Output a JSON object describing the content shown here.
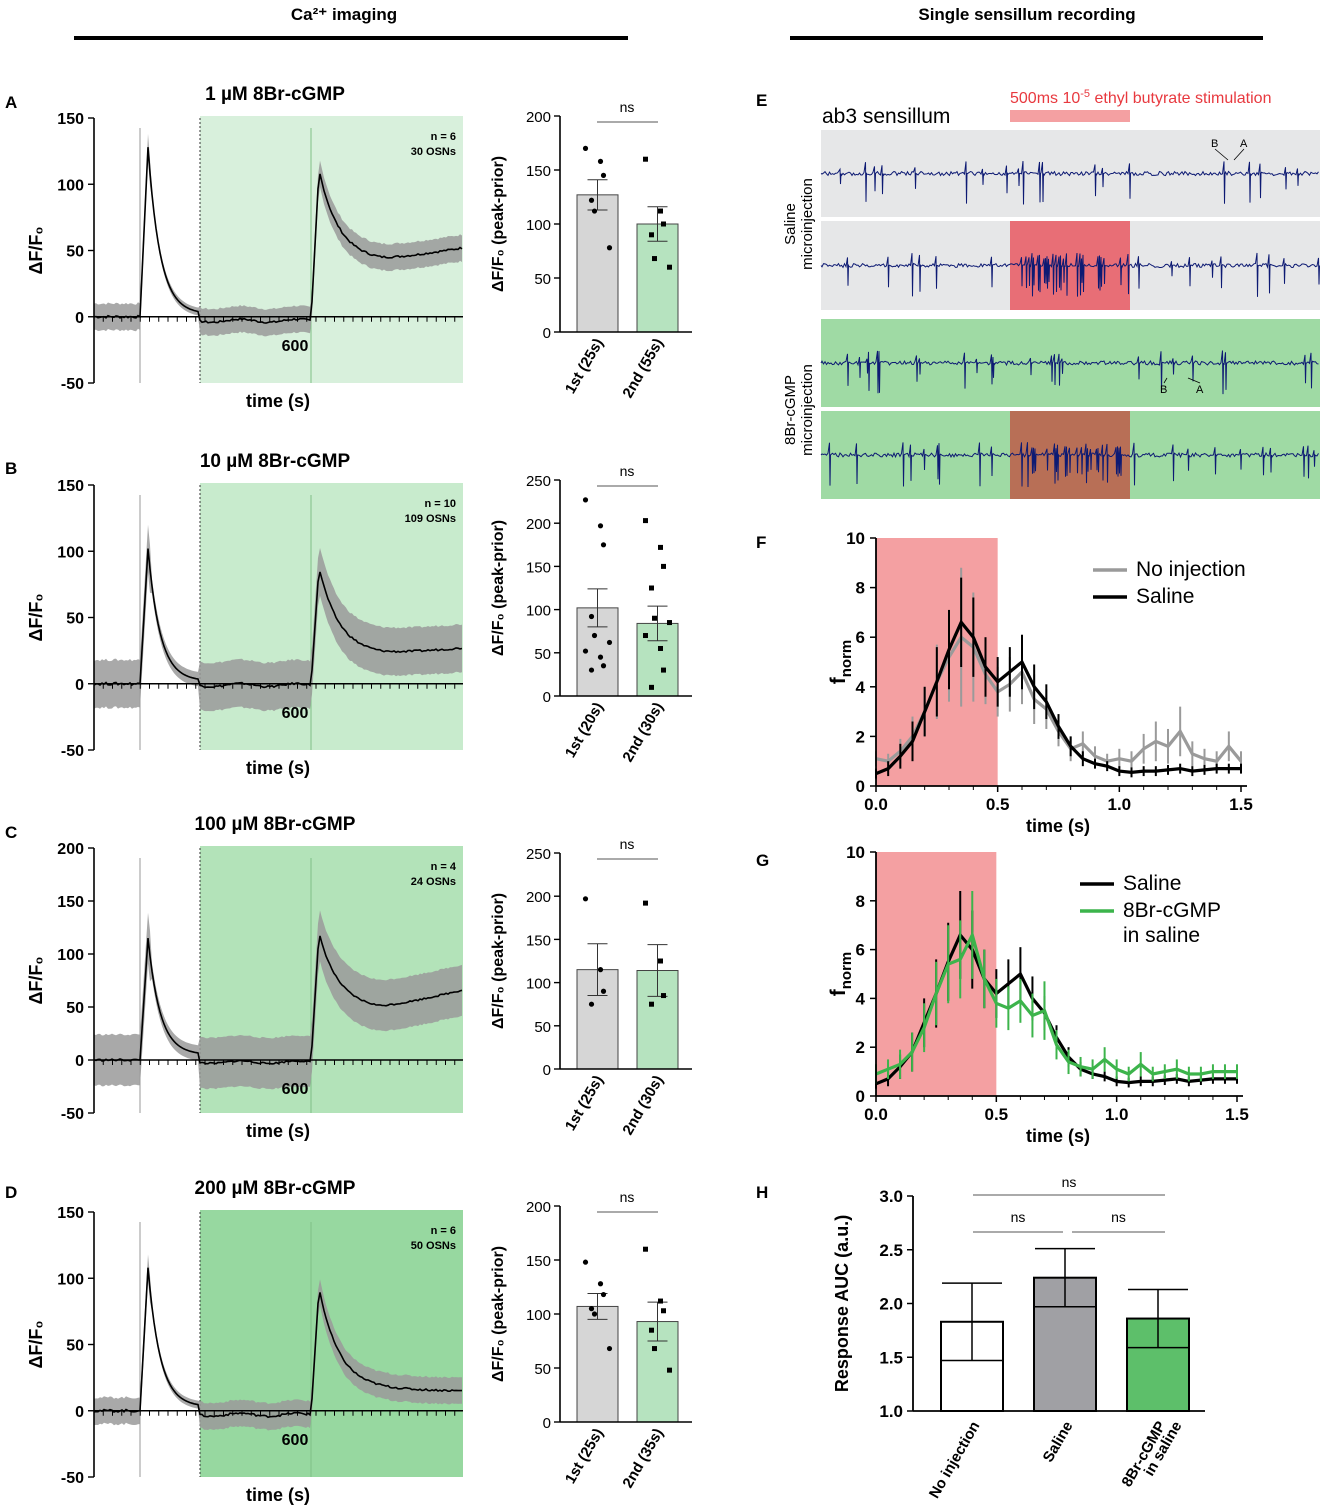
{
  "headers": {
    "left": "Ca²⁺ imaging",
    "right": "Single sensillum recording"
  },
  "colors": {
    "gray_bar": "#d6d6d6",
    "green_bar": "#b6e3bf",
    "gray_trace": "#9a9a9a",
    "black": "#000000",
    "green_trace": "#3cb44b",
    "stim_red": "#f4a0a2",
    "spike_blue": "#0d1a73",
    "saline_bg": "#e6e7e8",
    "cgmp_bg": "#9fdaa4",
    "auc_green": "#5dbf6a"
  },
  "chart_data": [
    {
      "panel": "A",
      "type": "line",
      "title": "1 µM 8Br-cGMP",
      "xlabel": "time (s)",
      "ylabel": "ΔF/F₀",
      "xtick_label": "600",
      "ylim": [
        -50,
        150
      ],
      "yticks": [
        "150",
        "100",
        "50",
        "0",
        "-50"
      ],
      "ytick_values": [
        150,
        100,
        50,
        0,
        -50
      ],
      "annotation": [
        "n = 6",
        "30 OSNs"
      ],
      "shade": "#d8f0dc",
      "first_peak": 128,
      "first_tail": 2,
      "dip": -3,
      "second_peak": 111,
      "plateau": 42,
      "end_value": 52,
      "sem": 10
    },
    {
      "panel": "A-bar",
      "type": "bar",
      "ylabel": "ΔF/F₀ (peak-prior)",
      "categories": [
        "1st (25s)",
        "2nd (55s)"
      ],
      "values": [
        127,
        100
      ],
      "sem": [
        14,
        16
      ],
      "ylim": [
        0,
        200
      ],
      "yticks": [
        "200",
        "150",
        "100",
        "50",
        "0"
      ],
      "ytick_values": [
        200,
        150,
        100,
        50,
        0
      ],
      "sig": "ns",
      "points": [
        [
          170,
          158,
          145,
          122,
          112,
          78
        ],
        [
          160,
          112,
          100,
          90,
          68,
          60
        ]
      ]
    },
    {
      "panel": "B",
      "type": "line",
      "title": "10 µM 8Br-cGMP",
      "xlabel": "time (s)",
      "ylabel": "ΔF/F₀",
      "xtick_label": "600",
      "ylim": [
        -50,
        150
      ],
      "yticks": [
        "150",
        "100",
        "50",
        "0",
        "-50"
      ],
      "ytick_values": [
        150,
        100,
        50,
        0,
        -50
      ],
      "annotation": [
        "n = 10",
        "109 OSNs"
      ],
      "shade": "#c8ebcd",
      "first_peak": 102,
      "first_tail": 2,
      "dip": -1,
      "second_peak": 88,
      "plateau": 22,
      "end_value": 27,
      "sem": 18
    },
    {
      "panel": "B-bar",
      "type": "bar",
      "ylabel": "ΔF/F₀ (peak-prior)",
      "categories": [
        "1st (20s)",
        "2nd (30s)"
      ],
      "values": [
        102,
        84
      ],
      "sem": [
        22,
        20
      ],
      "ylim": [
        0,
        250
      ],
      "yticks": [
        "250",
        "200",
        "150",
        "100",
        "50",
        "0"
      ],
      "ytick_values": [
        250,
        200,
        150,
        100,
        50,
        0
      ],
      "sig": "ns",
      "points": [
        [
          227,
          197,
          175,
          92,
          70,
          62,
          52,
          45,
          35,
          30
        ],
        [
          203,
          172,
          150,
          125,
          90,
          85,
          70,
          55,
          30,
          10
        ]
      ]
    },
    {
      "panel": "C",
      "type": "line",
      "title": "100 µM 8Br-cGMP",
      "xlabel": "time (s)",
      "ylabel": "ΔF/F₀",
      "xtick_label": "600",
      "ylim": [
        -50,
        200
      ],
      "yticks": [
        "200",
        "150",
        "100",
        "50",
        "0",
        "-50"
      ],
      "ytick_values": [
        200,
        150,
        100,
        50,
        0,
        -50
      ],
      "annotation": [
        "n = 4",
        "24 OSNs"
      ],
      "shade": "#b3e3b9",
      "first_peak": 115,
      "first_tail": 5,
      "dip": -2,
      "second_peak": 120,
      "plateau": 48,
      "end_value": 66,
      "sem": 24
    },
    {
      "panel": "C-bar",
      "type": "bar",
      "ylabel": "ΔF/F₀ (peak-prior)",
      "categories": [
        "1st (25s)",
        "2nd (30s)"
      ],
      "values": [
        115,
        114
      ],
      "sem": [
        30,
        30
      ],
      "ylim": [
        0,
        250
      ],
      "yticks": [
        "250",
        "200",
        "150",
        "100",
        "50",
        "0"
      ],
      "ytick_values": [
        250,
        200,
        150,
        100,
        50,
        0
      ],
      "sig": "ns",
      "points": [
        [
          197,
          115,
          90,
          75
        ],
        [
          192,
          125,
          85,
          75
        ]
      ]
    },
    {
      "panel": "D",
      "type": "line",
      "title": "200 µM 8Br-cGMP",
      "xlabel": "time (s)",
      "ylabel": "ΔF/F₀",
      "xtick_label": "600",
      "ylim": [
        -50,
        150
      ],
      "yticks": [
        "150",
        "100",
        "50",
        "0",
        "-50"
      ],
      "ytick_values": [
        150,
        100,
        50,
        0,
        -50
      ],
      "annotation": [
        "n = 6",
        "50 OSNs"
      ],
      "shade": "#97d8a0",
      "first_peak": 108,
      "first_tail": 3,
      "dip": -3,
      "second_peak": 93,
      "plateau": 16,
      "end_value": 15,
      "sem": 10
    },
    {
      "panel": "D-bar",
      "type": "bar",
      "ylabel": "ΔF/F₀ (peak-prior)",
      "categories": [
        "1st (25s)",
        "2nd (35s)"
      ],
      "values": [
        107,
        93
      ],
      "sem": [
        12,
        18
      ],
      "ylim": [
        0,
        200
      ],
      "yticks": [
        "200",
        "150",
        "100",
        "50",
        "0"
      ],
      "ytick_values": [
        200,
        150,
        100,
        50,
        0
      ],
      "sig": "ns",
      "points": [
        [
          148,
          128,
          118,
          105,
          100,
          68
        ],
        [
          160,
          112,
          103,
          85,
          68,
          48
        ]
      ]
    },
    {
      "panel": "E",
      "type": "traces",
      "sensillum_label": "ab3 sensillum",
      "stim_label_prefix": "500ms 10",
      "stim_label_exp": "-5",
      "stim_label_suffix": " ethyl butyrate stimulation",
      "groups": [
        "Saline",
        "microinjection",
        "8Br-cGMP",
        "microinjection"
      ],
      "spike_labels": [
        "B",
        "A",
        "B",
        "A"
      ],
      "stim_window": [
        0.0,
        0.5
      ]
    },
    {
      "panel": "F",
      "type": "line",
      "xlabel": "time (s)",
      "ylabel_main": "f",
      "ylabel_sub": "norm",
      "xlim": [
        0,
        1.5
      ],
      "ylim": [
        0,
        10
      ],
      "xticks": [
        "0.0",
        "0.5",
        "1.0",
        "1.5"
      ],
      "xtick_values": [
        0,
        0.5,
        1.0,
        1.5
      ],
      "yticks": [
        "10",
        "8",
        "6",
        "4",
        "2",
        "0"
      ],
      "ytick_values": [
        10,
        8,
        6,
        4,
        2,
        0
      ],
      "stim_window": [
        0,
        0.5
      ],
      "series": [
        {
          "name": "No injection",
          "color": "#9a9a9a",
          "x": [
            0.0,
            0.05,
            0.1,
            0.15,
            0.2,
            0.25,
            0.3,
            0.35,
            0.4,
            0.45,
            0.5,
            0.55,
            0.6,
            0.65,
            0.7,
            0.75,
            0.8,
            0.85,
            0.9,
            0.95,
            1.0,
            1.05,
            1.1,
            1.15,
            1.2,
            1.25,
            1.3,
            1.35,
            1.4,
            1.45,
            1.5
          ],
          "y": [
            1.1,
            1.0,
            1.4,
            2.0,
            3.0,
            4.2,
            5.2,
            6.0,
            5.6,
            4.5,
            3.8,
            4.1,
            4.6,
            3.5,
            3.1,
            2.2,
            1.5,
            1.7,
            1.2,
            1.0,
            1.1,
            1.0,
            1.5,
            1.8,
            1.6,
            2.2,
            1.3,
            1.1,
            1.0,
            1.6,
            1.0
          ],
          "err": [
            0.3,
            0.3,
            0.5,
            0.8,
            1.0,
            1.5,
            1.8,
            2.8,
            2.2,
            1.2,
            1.0,
            1.1,
            1.3,
            1.0,
            0.8,
            0.6,
            0.5,
            0.5,
            0.4,
            0.3,
            0.4,
            0.4,
            0.6,
            0.8,
            0.7,
            1.0,
            0.5,
            0.4,
            0.4,
            0.6,
            0.4
          ]
        },
        {
          "name": "Saline",
          "color": "#000000",
          "x": [
            0.0,
            0.05,
            0.1,
            0.15,
            0.2,
            0.25,
            0.3,
            0.35,
            0.4,
            0.45,
            0.5,
            0.55,
            0.6,
            0.65,
            0.7,
            0.75,
            0.8,
            0.85,
            0.9,
            0.95,
            1.0,
            1.05,
            1.1,
            1.15,
            1.2,
            1.25,
            1.3,
            1.35,
            1.4,
            1.45,
            1.5
          ],
          "y": [
            0.5,
            0.7,
            1.2,
            1.8,
            3.0,
            4.2,
            5.5,
            6.6,
            6.0,
            4.8,
            4.2,
            4.6,
            5.0,
            4.0,
            3.4,
            2.4,
            1.6,
            1.1,
            0.9,
            0.8,
            0.6,
            0.55,
            0.6,
            0.6,
            0.65,
            0.7,
            0.6,
            0.65,
            0.7,
            0.7,
            0.7
          ],
          "err": [
            0.2,
            0.3,
            0.5,
            0.8,
            1.0,
            1.4,
            1.6,
            1.8,
            1.6,
            1.2,
            1.0,
            1.0,
            1.1,
            0.9,
            0.7,
            0.5,
            0.4,
            0.3,
            0.2,
            0.2,
            0.2,
            0.2,
            0.2,
            0.2,
            0.2,
            0.2,
            0.2,
            0.2,
            0.2,
            0.2,
            0.2
          ]
        }
      ]
    },
    {
      "panel": "G",
      "type": "line",
      "xlabel": "time (s)",
      "ylabel_main": "f",
      "ylabel_sub": "norm",
      "xlim": [
        0,
        1.5
      ],
      "ylim": [
        0,
        10
      ],
      "xticks": [
        "0.0",
        "0.5",
        "1.0",
        "1.5"
      ],
      "xtick_values": [
        0,
        0.5,
        1.0,
        1.5
      ],
      "yticks": [
        "10",
        "8",
        "6",
        "4",
        "2",
        "0"
      ],
      "ytick_values": [
        10,
        8,
        6,
        4,
        2,
        0
      ],
      "stim_window": [
        0,
        0.5
      ],
      "series": [
        {
          "name": "Saline",
          "color": "#000000",
          "x": [
            0.0,
            0.05,
            0.1,
            0.15,
            0.2,
            0.25,
            0.3,
            0.35,
            0.4,
            0.45,
            0.5,
            0.55,
            0.6,
            0.65,
            0.7,
            0.75,
            0.8,
            0.85,
            0.9,
            0.95,
            1.0,
            1.05,
            1.1,
            1.15,
            1.2,
            1.25,
            1.3,
            1.35,
            1.4,
            1.45,
            1.5
          ],
          "y": [
            0.5,
            0.7,
            1.2,
            1.8,
            3.0,
            4.2,
            5.5,
            6.6,
            6.0,
            4.8,
            4.2,
            4.6,
            5.0,
            4.0,
            3.4,
            2.4,
            1.6,
            1.1,
            0.9,
            0.8,
            0.6,
            0.55,
            0.6,
            0.6,
            0.65,
            0.7,
            0.6,
            0.65,
            0.7,
            0.7,
            0.7
          ],
          "err": [
            0.2,
            0.3,
            0.5,
            0.8,
            1.0,
            1.4,
            1.6,
            1.8,
            1.6,
            1.2,
            1.0,
            1.0,
            1.1,
            0.9,
            0.7,
            0.5,
            0.4,
            0.3,
            0.2,
            0.2,
            0.2,
            0.2,
            0.2,
            0.2,
            0.2,
            0.2,
            0.2,
            0.2,
            0.2,
            0.2,
            0.2
          ]
        },
        {
          "name": "8Br-cGMP in saline",
          "name_line1": "8Br-cGMP",
          "name_line2": "in saline",
          "color": "#3cb44b",
          "x": [
            0.0,
            0.05,
            0.1,
            0.15,
            0.2,
            0.25,
            0.3,
            0.35,
            0.4,
            0.45,
            0.5,
            0.55,
            0.6,
            0.65,
            0.7,
            0.75,
            0.8,
            0.85,
            0.9,
            0.95,
            1.0,
            1.05,
            1.1,
            1.15,
            1.2,
            1.25,
            1.3,
            1.35,
            1.4,
            1.45,
            1.5
          ],
          "y": [
            0.9,
            1.1,
            1.3,
            1.8,
            2.8,
            4.2,
            5.4,
            5.6,
            6.6,
            4.8,
            3.8,
            3.6,
            3.9,
            3.3,
            3.5,
            2.1,
            1.4,
            1.2,
            1.1,
            1.5,
            1.1,
            0.9,
            1.3,
            0.9,
            1.0,
            1.1,
            0.9,
            0.9,
            1.0,
            1.0,
            1.0
          ],
          "err": [
            0.4,
            0.4,
            0.6,
            0.8,
            1.0,
            1.3,
            1.6,
            1.6,
            1.8,
            1.2,
            1.0,
            0.9,
            0.9,
            0.9,
            1.2,
            0.6,
            0.5,
            0.4,
            0.4,
            0.5,
            0.4,
            0.3,
            0.5,
            0.3,
            0.3,
            0.4,
            0.3,
            0.3,
            0.3,
            0.3,
            0.3
          ]
        }
      ]
    },
    {
      "panel": "H",
      "type": "bar",
      "ylabel": "Response AUC (a.u.)",
      "categories": [
        "No injection",
        "Saline",
        "8Br-cGMP in saline"
      ],
      "category_lines": [
        [
          "No injection"
        ],
        [
          "Saline"
        ],
        [
          "8Br-cGMP",
          "in saline"
        ]
      ],
      "values": [
        1.83,
        2.24,
        1.86
      ],
      "err": [
        0.36,
        0.27,
        0.27
      ],
      "colors": [
        "#ffffff",
        "#a0a0a4",
        "#5dbf6a"
      ],
      "ylim": [
        1.0,
        3.0
      ],
      "yticks": [
        "3.0",
        "2.5",
        "2.0",
        "1.5",
        "1.0"
      ],
      "ytick_values": [
        3.0,
        2.5,
        2.0,
        1.5,
        1.0
      ],
      "sig": [
        "ns",
        "ns",
        "ns"
      ]
    }
  ]
}
